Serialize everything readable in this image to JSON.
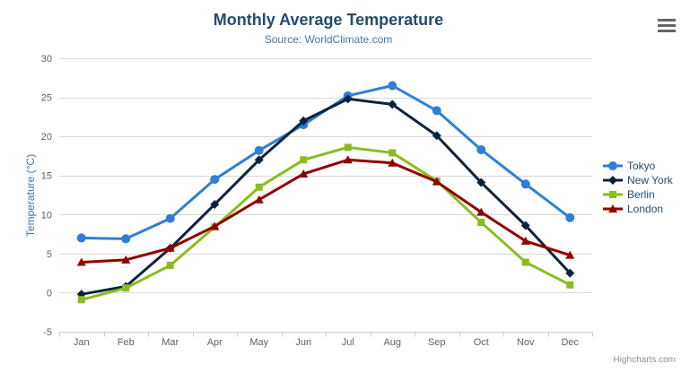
{
  "toolbar": {
    "export_menu_icon": "hamburger-menu-icon"
  },
  "credit": {
    "label": "Highcharts.com"
  },
  "colors": {
    "background": "#ffffff",
    "title": "#274b6d",
    "subtitle": "#4d759e",
    "axis_title": "#4572a7",
    "tick_label": "#606060",
    "grid": "#d8d8d8",
    "axis_line": "#c0d0e0",
    "legend_text": "#274b6d",
    "credit": "#909090",
    "menu_icon": "#666666"
  },
  "chart_data": {
    "type": "line",
    "title": "Monthly Average Temperature",
    "subtitle": "Source: WorldClimate.com",
    "xlabel": "",
    "ylabel": "Temperature (°C)",
    "ylim": [
      -5,
      30
    ],
    "ytick_step": 5,
    "grid": true,
    "legend_position": "right",
    "categories": [
      "Jan",
      "Feb",
      "Mar",
      "Apr",
      "May",
      "Jun",
      "Jul",
      "Aug",
      "Sep",
      "Oct",
      "Nov",
      "Dec"
    ],
    "series": [
      {
        "name": "Tokyo",
        "color": "#2f7ed8",
        "marker": "circle",
        "values": [
          7.0,
          6.9,
          9.5,
          14.5,
          18.2,
          21.5,
          25.2,
          26.5,
          23.3,
          18.3,
          13.9,
          9.6
        ]
      },
      {
        "name": "New York",
        "color": "#0d233a",
        "marker": "diamond",
        "values": [
          -0.2,
          0.8,
          5.7,
          11.3,
          17.0,
          22.0,
          24.8,
          24.1,
          20.1,
          14.1,
          8.6,
          2.5
        ]
      },
      {
        "name": "Berlin",
        "color": "#8bbc21",
        "marker": "square",
        "values": [
          -0.9,
          0.6,
          3.5,
          8.4,
          13.5,
          17.0,
          18.6,
          17.9,
          14.3,
          9.0,
          3.9,
          1.0
        ]
      },
      {
        "name": "London",
        "color": "#910000",
        "marker": "triangle",
        "values": [
          3.9,
          4.2,
          5.7,
          8.5,
          11.9,
          15.2,
          17.0,
          16.6,
          14.2,
          10.3,
          6.6,
          4.8
        ]
      }
    ]
  }
}
